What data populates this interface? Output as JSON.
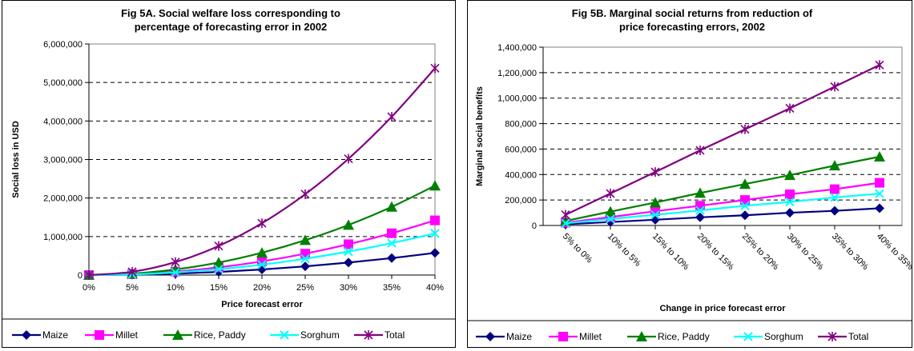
{
  "charts": [
    {
      "title_lines": [
        "Fig 5A. Social welfare loss corresponding to",
        "percentage of forecasting error in 2002"
      ],
      "xlabel": "Price forecast error",
      "ylabel": "Social loss in USD",
      "ytick_labels": [
        "0",
        "1,000,000",
        "2,000,000",
        "3,000,000",
        "4,000,000",
        "5,000,000",
        "6,000,000"
      ]
    },
    {
      "title_lines": [
        "Fig 5B. Marginal social returns from reduction of",
        "price forecasting errors, 2002"
      ],
      "xlabel": "Change in price forecast error",
      "ylabel": "Marginal social benefits",
      "ytick_labels": [
        "0",
        "200,000",
        "400,000",
        "600,000",
        "800,000",
        "1,000,000",
        "1,200,000",
        "1,400,000"
      ]
    }
  ],
  "chart_data": [
    {
      "type": "line",
      "title": "Fig 5A. Social welfare loss corresponding to percentage of forecasting error in 2002",
      "xlabel": "Price forecast error",
      "ylabel": "Social loss in USD",
      "categories": [
        "0%",
        "5%",
        "10%",
        "15%",
        "20%",
        "25%",
        "30%",
        "35%",
        "40%"
      ],
      "ylim": [
        0,
        6000000
      ],
      "grid": "horizontal dashed",
      "legend": "bottom",
      "series": [
        {
          "name": "Maize",
          "color": "#000080",
          "marker": "diamond",
          "values": [
            0,
            9000,
            36000,
            81000,
            145000,
            225000,
            325000,
            440000,
            575000
          ]
        },
        {
          "name": "Millet",
          "color": "#FF00FF",
          "marker": "square",
          "values": [
            0,
            22000,
            88000,
            200000,
            355000,
            555000,
            800000,
            1085000,
            1420000
          ]
        },
        {
          "name": "Rice, Paddy",
          "color": "#008000",
          "marker": "triangle",
          "values": [
            0,
            36000,
            145000,
            325000,
            580000,
            905000,
            1300000,
            1770000,
            2320000
          ]
        },
        {
          "name": "Sorghum",
          "color": "#00FFFF",
          "marker": "x",
          "values": [
            0,
            17000,
            68000,
            152000,
            270000,
            425000,
            610000,
            830000,
            1080000
          ]
        },
        {
          "name": "Total",
          "color": "#800080",
          "marker": "star",
          "values": [
            0,
            84000,
            335000,
            755000,
            1345000,
            2100000,
            3020000,
            4110000,
            5370000
          ]
        }
      ]
    },
    {
      "type": "line",
      "title": "Fig 5B. Marginal social returns from reduction of price forecasting errors, 2002",
      "xlabel": "Change in price forecast error",
      "ylabel": "Marginal social benefits",
      "categories": [
        "5% to 0%",
        "10% to 5%",
        "15% to 10%",
        "20% to 15%",
        "25% to 20%",
        "30% to 25%",
        "35% to 30%",
        "40% to 35%"
      ],
      "ylim": [
        0,
        1400000
      ],
      "grid": "horizontal dashed",
      "legend": "bottom",
      "series": [
        {
          "name": "Maize",
          "color": "#000080",
          "marker": "diamond",
          "values": [
            9000,
            27000,
            45000,
            64000,
            80000,
            100000,
            115000,
            135000
          ]
        },
        {
          "name": "Millet",
          "color": "#FF00FF",
          "marker": "square",
          "values": [
            22000,
            66000,
            112000,
            155000,
            200000,
            245000,
            285000,
            335000
          ]
        },
        {
          "name": "Rice, Paddy",
          "color": "#008000",
          "marker": "triangle",
          "values": [
            36000,
            109000,
            180000,
            255000,
            325000,
            395000,
            470000,
            540000
          ]
        },
        {
          "name": "Sorghum",
          "color": "#00FFFF",
          "marker": "x",
          "values": [
            17000,
            51000,
            84000,
            118000,
            155000,
            185000,
            220000,
            250000
          ]
        },
        {
          "name": "Total",
          "color": "#800080",
          "marker": "star",
          "values": [
            84000,
            251000,
            420000,
            590000,
            755000,
            920000,
            1090000,
            1260000
          ]
        }
      ]
    }
  ]
}
